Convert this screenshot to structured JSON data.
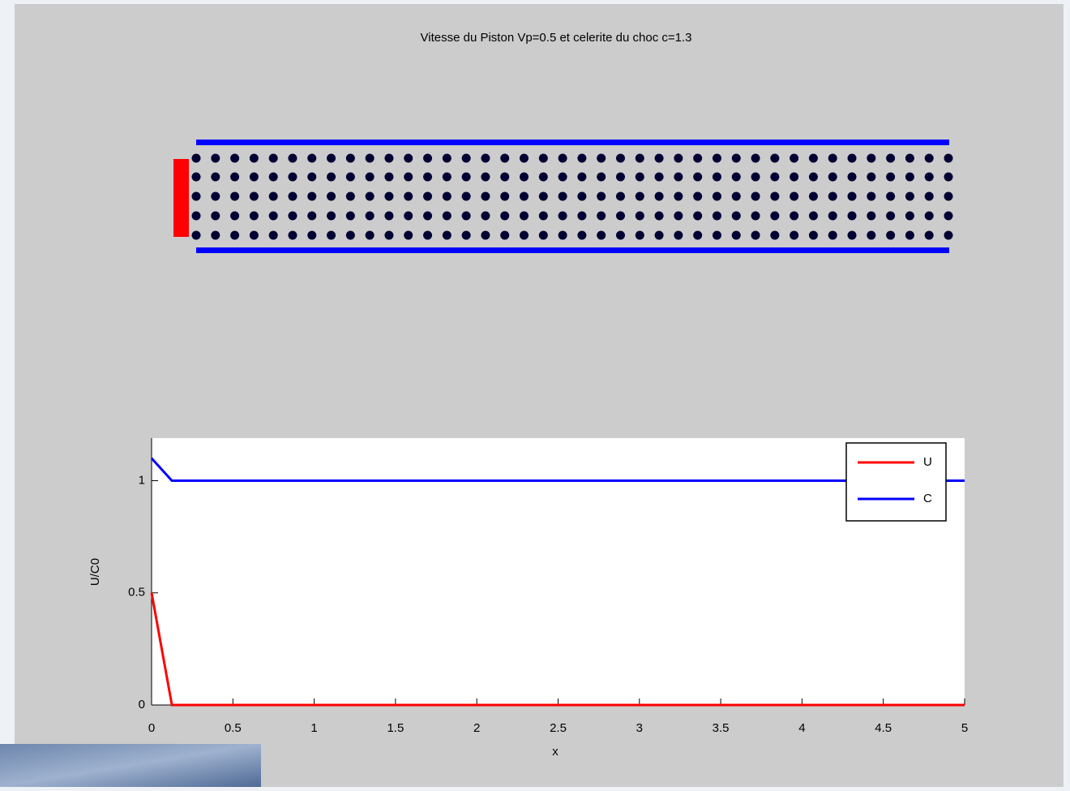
{
  "chart_data": {
    "type": "line",
    "title": "Vitesse du Piston Vp=0.5  et celerite du choc c=1.3",
    "x_label": "x",
    "y_label": "U/C0",
    "x": [
      0,
      0.125,
      5
    ],
    "series": [
      {
        "name": "U",
        "color": "#ff0000",
        "values": [
          0.5,
          0,
          0
        ]
      },
      {
        "name": "C",
        "color": "#0000ff",
        "values": [
          1.1,
          1.0,
          1.0
        ]
      }
    ],
    "xlim": [
      0,
      5
    ],
    "xticks": [
      0,
      0.5,
      1,
      1.5,
      2,
      2.5,
      3,
      3.5,
      4,
      4.5,
      5
    ],
    "ylim": [
      0,
      1.19
    ],
    "yticks": [
      0,
      0.5,
      1
    ],
    "legend": "top-right",
    "grid": false
  }
}
